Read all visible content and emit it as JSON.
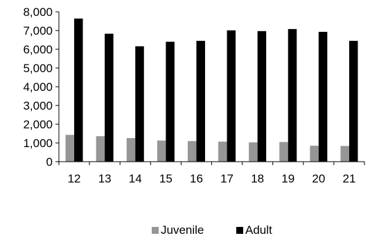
{
  "chart_data": {
    "type": "bar",
    "title": "",
    "xlabel": "",
    "ylabel": "",
    "categories": [
      "12",
      "13",
      "14",
      "15",
      "16",
      "17",
      "18",
      "19",
      "20",
      "21"
    ],
    "series": [
      {
        "name": "Juvenile",
        "color": "#969696",
        "values": [
          1430,
          1360,
          1260,
          1130,
          1100,
          1070,
          1030,
          1050,
          850,
          840
        ]
      },
      {
        "name": "Adult",
        "color": "#000000",
        "values": [
          7640,
          6830,
          6160,
          6400,
          6450,
          7010,
          6970,
          7080,
          6930,
          6450
        ]
      }
    ],
    "ylim": [
      0,
      8000
    ],
    "yticks": [
      0,
      1000,
      2000,
      3000,
      4000,
      5000,
      6000,
      7000,
      8000
    ],
    "ytick_labels": [
      "0",
      "1,000",
      "2,000",
      "3,000",
      "4,000",
      "5,000",
      "6,000",
      "7,000",
      "8,000"
    ],
    "grid": false,
    "legend_position": "bottom"
  }
}
